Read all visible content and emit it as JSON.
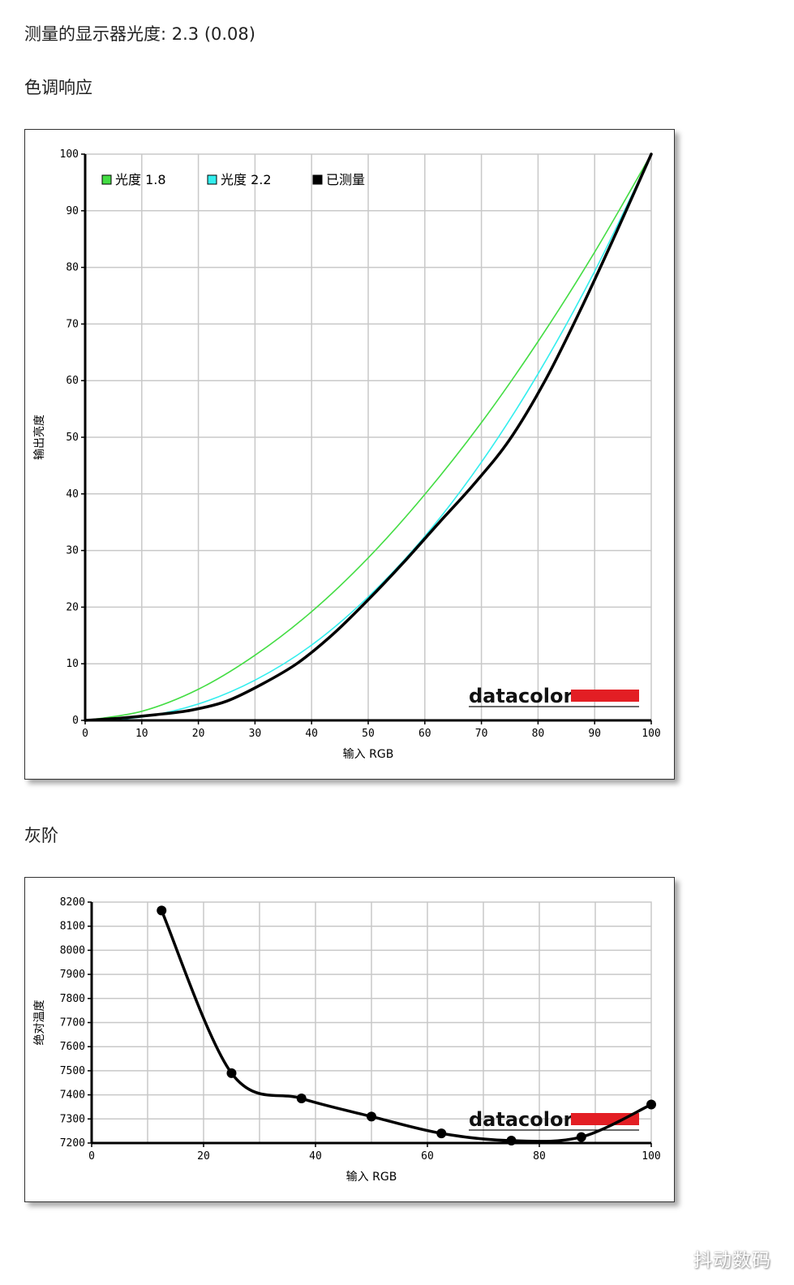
{
  "page": {
    "gamma_line": "测量的显示器光度: 2.3 (0.08)",
    "tone_heading": "色调响应",
    "gray_heading": "灰阶",
    "watermark": "抖动数码"
  },
  "chart_data": [
    {
      "type": "line",
      "xlabel": "输入 RGB",
      "ylabel": "输出亮度",
      "xlim": [
        0,
        100
      ],
      "ylim": [
        0,
        100
      ],
      "xticks": [
        0,
        10,
        20,
        30,
        40,
        50,
        60,
        70,
        80,
        90,
        100
      ],
      "yticks": [
        0,
        10,
        20,
        30,
        40,
        50,
        60,
        70,
        80,
        90,
        100
      ],
      "grid": true,
      "legend_position": "top-left",
      "logo": {
        "text": "datacolor",
        "bar_color": "#e31e24"
      },
      "series": [
        {
          "name": "光度 1.8",
          "color": "#44dd44",
          "gamma": 1.8,
          "x": [
            0,
            10,
            20,
            30,
            40,
            50,
            60,
            70,
            80,
            90,
            100
          ],
          "y": [
            0,
            1.6,
            5.5,
            11.5,
            19.2,
            28.7,
            39.9,
            52.6,
            66.9,
            82.7,
            100
          ]
        },
        {
          "name": "光度 2.2",
          "color": "#33eeee",
          "gamma": 2.2,
          "x": [
            0,
            10,
            20,
            30,
            40,
            50,
            60,
            70,
            80,
            90,
            100
          ],
          "y": [
            0,
            0.6,
            2.9,
            7.1,
            13.3,
            21.8,
            32.5,
            45.6,
            61.2,
            79.3,
            100
          ]
        },
        {
          "name": "已测量",
          "color": "#000000",
          "x": [
            0,
            6.25,
            12.5,
            18.75,
            25,
            31.25,
            37.5,
            43.75,
            50,
            56.25,
            62.5,
            68.75,
            75,
            81.25,
            87.5,
            93.75,
            100
          ],
          "y": [
            0,
            0.4,
            1.0,
            1.8,
            3.4,
            6.4,
            10.1,
            15.2,
            21.3,
            27.9,
            34.9,
            41.8,
            49.6,
            60.0,
            72.5,
            86.0,
            100
          ]
        }
      ]
    },
    {
      "type": "line",
      "xlabel": "输入 RGB",
      "ylabel": "绝对温度",
      "xlim": [
        0,
        100
      ],
      "ylim": [
        7200,
        8200
      ],
      "xticks": [
        0,
        20,
        40,
        60,
        80,
        100
      ],
      "yticks": [
        7200,
        7300,
        7400,
        7500,
        7600,
        7700,
        7800,
        7900,
        8000,
        8100,
        8200
      ],
      "grid": true,
      "logo": {
        "text": "datacolor",
        "bar_color": "#e31e24"
      },
      "series": [
        {
          "color": "#000000",
          "x": [
            12.5,
            25,
            37.5,
            50,
            62.5,
            75,
            87.5,
            100
          ],
          "y": [
            8165,
            7490,
            7385,
            7310,
            7240,
            7210,
            7225,
            7360
          ]
        }
      ]
    }
  ]
}
